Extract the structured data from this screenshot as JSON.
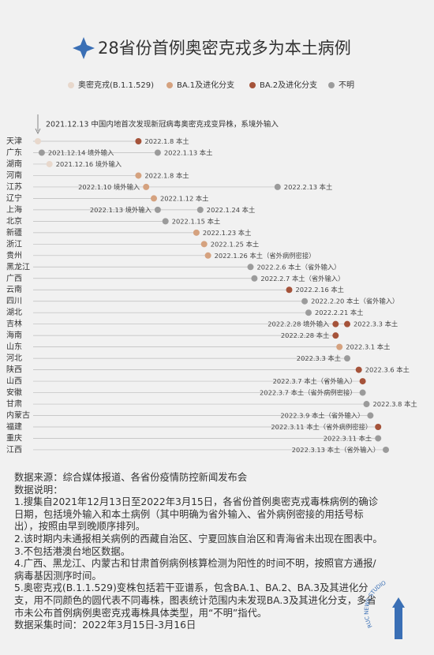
{
  "title": "28省份首例奥密克戎多为本土病例",
  "legend": [
    {
      "name": "奥密克戎(B.1.1.529)",
      "color": "#e8d8cc"
    },
    {
      "name": "BA.1及进化分支",
      "color": "#d5a27f"
    },
    {
      "name": "BA.2及进化分支",
      "color": "#a5533a"
    },
    {
      "name": "不明",
      "color": "#9b9b9b"
    }
  ],
  "annotation": "2021.12.13 中国内地首次发现新冠病毒奥密克戎变异株，系境外输入",
  "rows": [
    {
      "province": "天津",
      "points": [
        {
          "date": "2021.12.13",
          "variant": 0
        },
        {
          "date": "2022.1.8",
          "note": "本土",
          "variant": 2
        }
      ]
    },
    {
      "province": "广东",
      "points": [
        {
          "date": "2021.12.14",
          "note": "境外输入",
          "variant": 3
        },
        {
          "date": "2022.1.13",
          "note": "本土",
          "variant": 3
        }
      ]
    },
    {
      "province": "湖南",
      "points": [
        {
          "date": "2021.12.16",
          "note": "境外输入",
          "variant": 0
        }
      ]
    },
    {
      "province": "河南",
      "points": [
        {
          "date": "2022.1.8",
          "note": "本土",
          "variant": 1
        }
      ]
    },
    {
      "province": "江苏",
      "points": [
        {
          "date": "2022.1.10",
          "note": "境外输入",
          "variant": 1
        },
        {
          "date": "2022.2.13",
          "note": "本土",
          "variant": 3
        }
      ]
    },
    {
      "province": "辽宁",
      "points": [
        {
          "date": "2022.1.12",
          "note": "本土",
          "variant": 1
        }
      ]
    },
    {
      "province": "上海",
      "points": [
        {
          "date": "2022.1.13",
          "note": "境外输入",
          "variant": 3
        },
        {
          "date": "2022.1.24",
          "note": "本土",
          "variant": 3
        }
      ]
    },
    {
      "province": "北京",
      "points": [
        {
          "date": "2022.1.15",
          "note": "本土",
          "variant": 3
        }
      ]
    },
    {
      "province": "新疆",
      "points": [
        {
          "date": "2022.1.23",
          "note": "本土",
          "variant": 1
        }
      ]
    },
    {
      "province": "浙江",
      "points": [
        {
          "date": "2022.1.25",
          "note": "本土",
          "variant": 1
        }
      ]
    },
    {
      "province": "贵州",
      "points": [
        {
          "date": "2022.1.26",
          "note": "本土（省外病例密接）",
          "variant": 1
        }
      ]
    },
    {
      "province": "黑龙江",
      "points": [
        {
          "date": "2022.2.6",
          "note": "本土（省外输入）",
          "variant": 3
        }
      ]
    },
    {
      "province": "广西",
      "points": [
        {
          "date": "2022.2.7",
          "note": "本土（省外输入）",
          "variant": 3
        }
      ]
    },
    {
      "province": "云南",
      "points": [
        {
          "date": "2022.2.16",
          "note": "本土",
          "variant": 2
        }
      ]
    },
    {
      "province": "四川",
      "points": [
        {
          "date": "2022.2.20",
          "note": "本土（省外输入）",
          "variant": 3
        }
      ]
    },
    {
      "province": "湖北",
      "points": [
        {
          "date": "2022.2.21",
          "note": "本土",
          "variant": 3
        }
      ]
    },
    {
      "province": "吉林",
      "points": [
        {
          "date": "2022.2.28",
          "note": "境外输入",
          "variant": 2
        },
        {
          "date": "2022.3.3",
          "note": "本土",
          "variant": 2
        }
      ]
    },
    {
      "province": "海南",
      "points": [
        {
          "date": "2022.2.28",
          "note": "本土",
          "variant": 2
        }
      ]
    },
    {
      "province": "山东",
      "points": [
        {
          "date": "2022.3.1",
          "note": "本土",
          "variant": 1
        }
      ]
    },
    {
      "province": "河北",
      "points": [
        {
          "date": "2022.3.3",
          "note": "本土",
          "variant": 3
        }
      ]
    },
    {
      "province": "陕西",
      "points": [
        {
          "date": "2022.3.6",
          "note": "本土",
          "variant": 2
        }
      ]
    },
    {
      "province": "山西",
      "points": [
        {
          "date": "2022.3.7",
          "note": "本土（省外输入）",
          "variant": 2
        }
      ]
    },
    {
      "province": "安徽",
      "points": [
        {
          "date": "2022.3.7",
          "note": "本土（省外病例密接）",
          "variant": 3
        }
      ]
    },
    {
      "province": "甘肃",
      "points": [
        {
          "date": "2022.3.8",
          "note": "本土",
          "variant": 3
        }
      ]
    },
    {
      "province": "内蒙古",
      "points": [
        {
          "date": "2022.3.9",
          "note": "本土（省外输入）",
          "variant": 3
        }
      ]
    },
    {
      "province": "福建",
      "points": [
        {
          "date": "2022.3.11",
          "note": "本土（省外病例密接）",
          "variant": 2
        }
      ]
    },
    {
      "province": "重庆",
      "points": [
        {
          "date": "2022.3.11",
          "note": "本土",
          "variant": 3
        }
      ]
    },
    {
      "province": "江西",
      "points": [
        {
          "date": "2022.3.13",
          "note": "本土（省外输入）",
          "variant": 3
        }
      ]
    }
  ],
  "source": "数据来源：综合媒体报道、各省份疫情防控新闻发布会",
  "notes_title": "数据说明：",
  "notes": [
    "1.搜集自2021年12月13日至2022年3月15日，各省份首例奥密克戎毒株病例的确诊日期，包括境外输入和本土病例（其中明确为省外输入、省外病例密接的用括号标出），按照由早到晚顺序排列。",
    "2.该时期内未通报相关病例的西藏自治区、宁夏回族自治区和青海省未出现在图表中。",
    "3.不包括港澳台地区数据。",
    "4.广西、黑龙江、内蒙古和甘肃首例病例核算检测为阳性的时间不明，按照官方通报/病毒基因测序时间。",
    "5.奥密克戎(B.1.1.529)变株包括若干亚谱系，包含BA.1、BA.2、BA.3及其进化分支，用不同颜色的圆代表不同毒株，图表统计范围内未发现BA.3及其进化分支，多省市未公布首例病例奥密克戎毒株具体类型，用“不明”指代。"
  ],
  "time": "数据采集时间：2022年3月15日-3月16日",
  "brand": "RUC NEWS STUDIO"
}
